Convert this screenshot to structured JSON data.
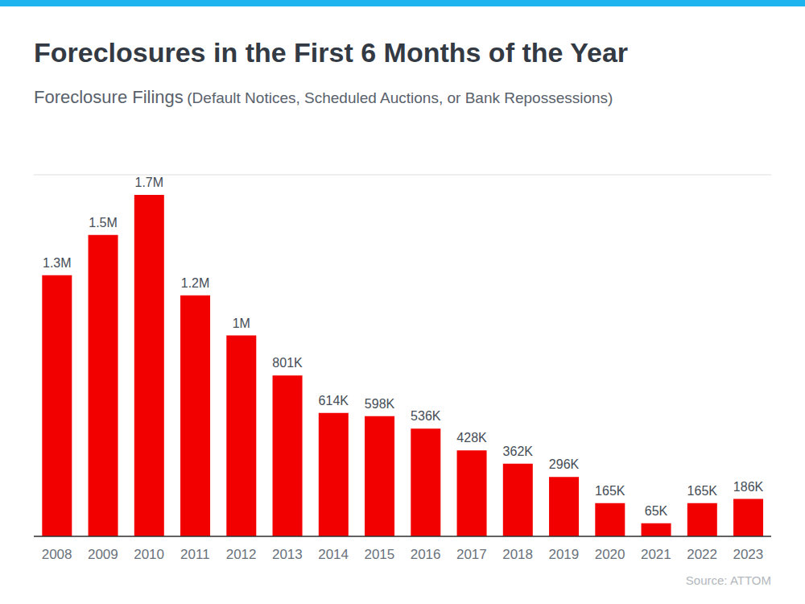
{
  "chart_data": {
    "type": "bar",
    "title": "Foreclosures in the First 6 Months of the Year",
    "subtitle": "Foreclosure Filings",
    "subtitle_note": "(Default Notices, Scheduled Auctions, or Bank Repossessions)",
    "source": "Source: ATTOM",
    "categories": [
      "2008",
      "2009",
      "2010",
      "2011",
      "2012",
      "2013",
      "2014",
      "2015",
      "2016",
      "2017",
      "2018",
      "2019",
      "2020",
      "2021",
      "2022",
      "2023"
    ],
    "values": [
      1300000,
      1500000,
      1700000,
      1200000,
      1000000,
      801000,
      614000,
      598000,
      536000,
      428000,
      362000,
      296000,
      165000,
      65000,
      165000,
      186000
    ],
    "value_labels": [
      "1.3M",
      "1.5M",
      "1.7M",
      "1.2M",
      "1M",
      "801K",
      "614K",
      "598K",
      "536K",
      "428K",
      "362K",
      "296K",
      "165K",
      "65K",
      "165K",
      "186K"
    ],
    "color": "#f20000",
    "ylim": [
      0,
      1800000
    ],
    "yticks": [
      0,
      200000,
      400000,
      600000,
      800000,
      1000000,
      1200000,
      1400000,
      1600000,
      1800000
    ],
    "grid": true,
    "data_labels": true,
    "tick_labels": "x"
  }
}
